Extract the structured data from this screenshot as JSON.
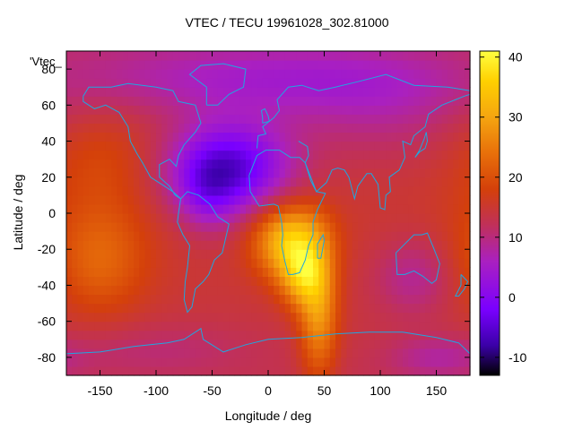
{
  "chart_data": {
    "type": "heatmap",
    "title": "VTEC / TECU 19961028_302.81000",
    "xlabel": "Longitude / deg",
    "ylabel": "Latitude / deg",
    "xlim": [
      -180,
      180
    ],
    "ylim": [
      -90,
      90
    ],
    "x_ticks": [
      -150,
      -100,
      -50,
      0,
      50,
      100,
      150
    ],
    "y_ticks": [
      -80,
      -60,
      -40,
      -20,
      0,
      20,
      40,
      60,
      80
    ],
    "colorbar": {
      "range": [
        -13,
        41
      ],
      "ticks": [
        -10,
        0,
        10,
        20,
        30,
        40
      ],
      "colors": [
        "#000000",
        "#3b00a8",
        "#7a00ff",
        "#aa20c0",
        "#c0305a",
        "#d4400a",
        "#e8700a",
        "#f5a510",
        "#ffd000",
        "#ffff40"
      ],
      "color_stops": [
        -13,
        -8,
        -2,
        6,
        12,
        18,
        24,
        30,
        36,
        41
      ]
    },
    "legend_key": "'Vtec_",
    "grid": false,
    "background_value": 13,
    "features": [
      {
        "lon": -35,
        "lat": 25,
        "sx": 38,
        "sy": 18,
        "amp": -20
      },
      {
        "lon": -55,
        "lat": 10,
        "sx": 18,
        "sy": 14,
        "amp": -6
      },
      {
        "lon": 0,
        "lat": 75,
        "sx": 130,
        "sy": 15,
        "amp": -8
      },
      {
        "lon": 100,
        "lat": 55,
        "sx": 60,
        "sy": 20,
        "amp": -4
      },
      {
        "lon": 20,
        "lat": -15,
        "sx": 22,
        "sy": 14,
        "amp": 20
      },
      {
        "lon": 45,
        "lat": -55,
        "sx": 12,
        "sy": 25,
        "amp": 14
      },
      {
        "lon": 30,
        "lat": -35,
        "sx": 14,
        "sy": 12,
        "amp": 14
      },
      {
        "lon": -150,
        "lat": -25,
        "sx": 30,
        "sy": 22,
        "amp": 8
      },
      {
        "lon": -150,
        "lat": 30,
        "sx": 35,
        "sy": 20,
        "amp": 4
      },
      {
        "lon": 130,
        "lat": -35,
        "sx": 25,
        "sy": 15,
        "amp": -6
      },
      {
        "lon": -100,
        "lat": -75,
        "sx": 60,
        "sy": 10,
        "amp": -3
      },
      {
        "lon": 150,
        "lat": -80,
        "sx": 30,
        "sy": 8,
        "amp": -5
      }
    ]
  }
}
